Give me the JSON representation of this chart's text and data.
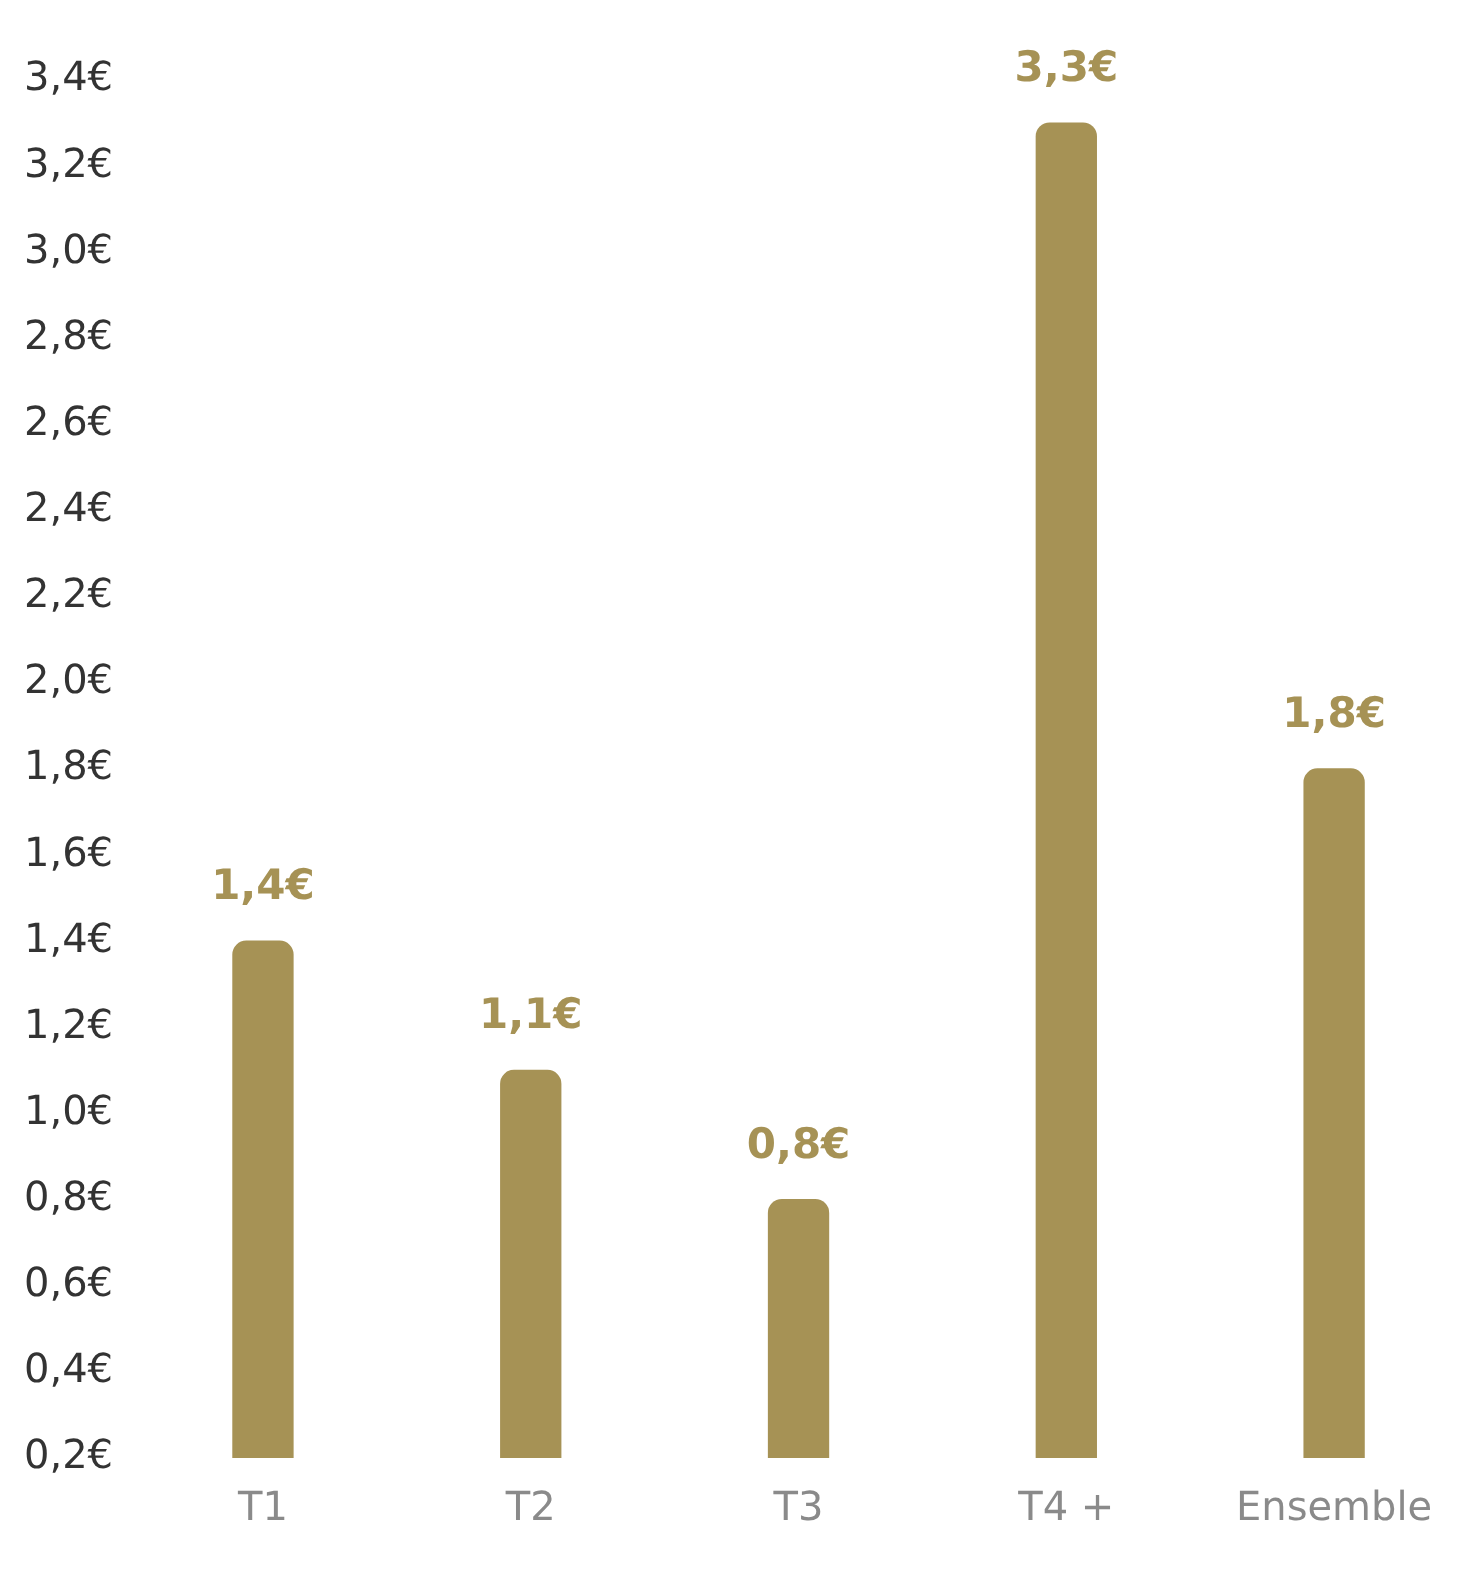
{
  "chart_data": {
    "type": "bar",
    "categories": [
      "T1",
      "T2",
      "T3",
      "T4 +",
      "Ensemble"
    ],
    "values": [
      1.4,
      1.1,
      0.8,
      3.3,
      1.8
    ],
    "value_labels": [
      "1,4€",
      "1,1€",
      "0,8€",
      "3,3€",
      "1,8€"
    ],
    "color": "#a69255",
    "ylim": [
      0.2,
      3.4
    ],
    "yticks": [
      {
        "value": 0.2,
        "label": "0,2€"
      },
      {
        "value": 0.4,
        "label": "0,4€"
      },
      {
        "value": 0.6,
        "label": "0,6€"
      },
      {
        "value": 0.8,
        "label": "0,8€"
      },
      {
        "value": 1.0,
        "label": "1,0€"
      },
      {
        "value": 1.2,
        "label": "1,2€"
      },
      {
        "value": 1.4,
        "label": "1,4€"
      },
      {
        "value": 1.6,
        "label": "1,6€"
      },
      {
        "value": 1.8,
        "label": "1,8€"
      },
      {
        "value": 2.0,
        "label": "2,0€"
      },
      {
        "value": 2.2,
        "label": "2,2€"
      },
      {
        "value": 2.4,
        "label": "2,4€"
      },
      {
        "value": 2.6,
        "label": "2,6€"
      },
      {
        "value": 2.8,
        "label": "2,8€"
      },
      {
        "value": 3.0,
        "label": "3,0€"
      },
      {
        "value": 3.2,
        "label": "3,2€"
      },
      {
        "value": 3.4,
        "label": "3,4€"
      }
    ],
    "grid": false
  }
}
